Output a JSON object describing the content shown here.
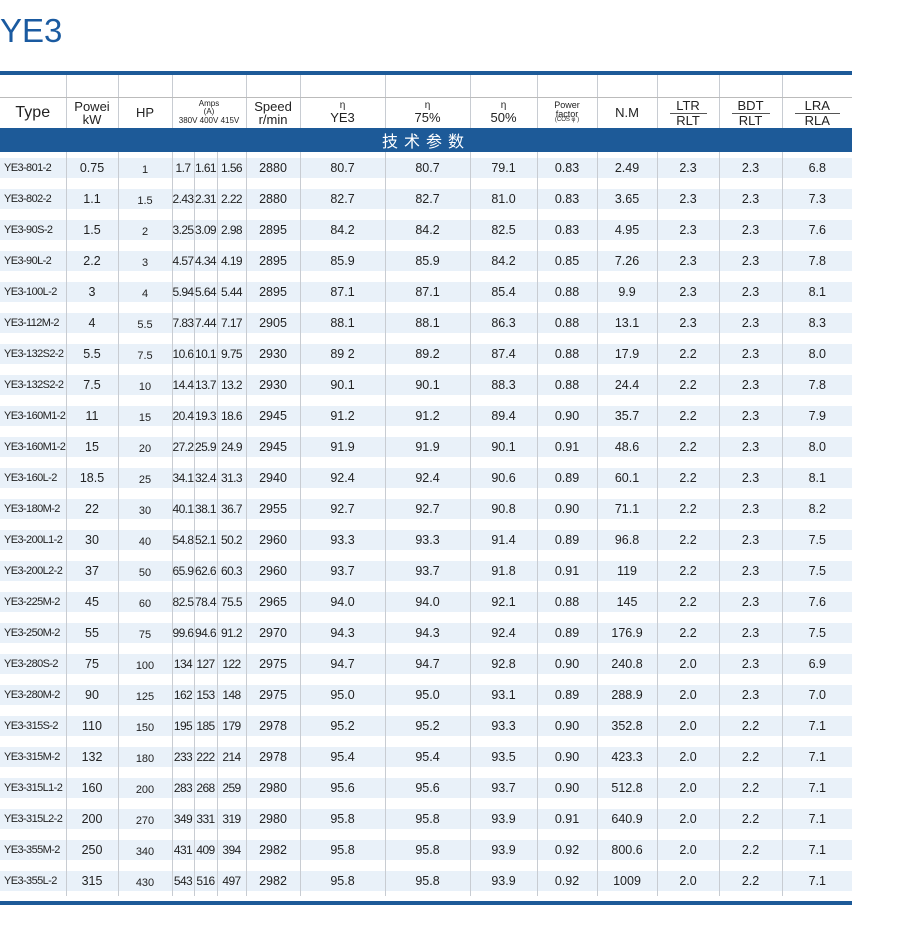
{
  "title": "YE3",
  "headers": {
    "type": "Type",
    "power": [
      "Powei",
      "kW"
    ],
    "hp": "HP",
    "amps": [
      "Amps",
      "(A)",
      "380V 400V 415V"
    ],
    "speed": [
      "Speed",
      "r/min"
    ],
    "eta_ye3": [
      "η",
      "YE3"
    ],
    "eta_75": [
      "η",
      "75%"
    ],
    "eta_50": [
      "η",
      "50%"
    ],
    "pf": [
      "Power",
      "factor",
      "(COS φ )"
    ],
    "nm": "N.M",
    "ltr": [
      "LTR",
      "RLT"
    ],
    "bdt": [
      "BDT",
      "RLT"
    ],
    "lra": [
      "LRA",
      "RLA"
    ]
  },
  "band_label": "技术参数",
  "rows": [
    [
      "YE3-801-2",
      "0.75",
      "1",
      "1.7",
      "1.61",
      "1.56",
      "2880",
      "80.7",
      "80.7",
      "79.1",
      "0.83",
      "2.49",
      "2.3",
      "2.3",
      "6.8"
    ],
    [
      "YE3-802-2",
      "1.1",
      "1.5",
      "2.43",
      "2.31",
      "2.22",
      "2880",
      "82.7",
      "82.7",
      "81.0",
      "0.83",
      "3.65",
      "2.3",
      "2.3",
      "7.3"
    ],
    [
      "YE3-90S-2",
      "1.5",
      "2",
      "3.25",
      "3.09",
      "2.98",
      "2895",
      "84.2",
      "84.2",
      "82.5",
      "0.83",
      "4.95",
      "2.3",
      "2.3",
      "7.6"
    ],
    [
      "YE3-90L-2",
      "2.2",
      "3",
      "4.57",
      "4.34",
      "4.19",
      "2895",
      "85.9",
      "85.9",
      "84.2",
      "0.85",
      "7.26",
      "2.3",
      "2.3",
      "7.8"
    ],
    [
      "YE3-100L-2",
      "3",
      "4",
      "5.94",
      "5.64",
      "5.44",
      "2895",
      "87.1",
      "87.1",
      "85.4",
      "0.88",
      "9.9",
      "2.3",
      "2.3",
      "8.1"
    ],
    [
      "YE3-112M-2",
      "4",
      "5.5",
      "7.83",
      "7.44",
      "7.17",
      "2905",
      "88.1",
      "88.1",
      "86.3",
      "0.88",
      "13.1",
      "2.3",
      "2.3",
      "8.3"
    ],
    [
      "YE3-132S2-2",
      "5.5",
      "7.5",
      "10.6",
      "10.1",
      "9.75",
      "2930",
      "89 2",
      "89.2",
      "87.4",
      "0.88",
      "17.9",
      "2.2",
      "2.3",
      "8.0"
    ],
    [
      "YE3-132S2-2",
      "7.5",
      "10",
      "14.4",
      "13.7",
      "13.2",
      "2930",
      "90.1",
      "90.1",
      "88.3",
      "0.88",
      "24.4",
      "2.2",
      "2.3",
      "7.8"
    ],
    [
      "YE3-160M1-2",
      "11",
      "15",
      "20.4",
      "19.3",
      "18.6",
      "2945",
      "91.2",
      "91.2",
      "89.4",
      "0.90",
      "35.7",
      "2.2",
      "2.3",
      "7.9"
    ],
    [
      "YE3-160M1-2",
      "15",
      "20",
      "27.2",
      "25.9",
      "24.9",
      "2945",
      "91.9",
      "91.9",
      "90.1",
      "0.91",
      "48.6",
      "2.2",
      "2.3",
      "8.0"
    ],
    [
      "YE3-160L-2",
      "18.5",
      "25",
      "34.1",
      "32.4",
      "31.3",
      "2940",
      "92.4",
      "92.4",
      "90.6",
      "0.89",
      "60.1",
      "2.2",
      "2.3",
      "8.1"
    ],
    [
      "YE3-180M-2",
      "22",
      "30",
      "40.1",
      "38.1",
      "36.7",
      "2955",
      "92.7",
      "92.7",
      "90.8",
      "0.90",
      "71.1",
      "2.2",
      "2.3",
      "8.2"
    ],
    [
      "YE3-200L1-2",
      "30",
      "40",
      "54.8",
      "52.1",
      "50.2",
      "2960",
      "93.3",
      "93.3",
      "91.4",
      "0.89",
      "96.8",
      "2.2",
      "2.3",
      "7.5"
    ],
    [
      "YE3-200L2-2",
      "37",
      "50",
      "65.9",
      "62.6",
      "60.3",
      "2960",
      "93.7",
      "93.7",
      "91.8",
      "0.91",
      "119",
      "2.2",
      "2.3",
      "7.5"
    ],
    [
      "YE3-225M-2",
      "45",
      "60",
      "82.5",
      "78.4",
      "75.5",
      "2965",
      "94.0",
      "94.0",
      "92.1",
      "0.88",
      "145",
      "2.2",
      "2.3",
      "7.6"
    ],
    [
      "YE3-250M-2",
      "55",
      "75",
      "99.6",
      "94.6",
      "91.2",
      "2970",
      "94.3",
      "94.3",
      "92.4",
      "0.89",
      "176.9",
      "2.2",
      "2.3",
      "7.5"
    ],
    [
      "YE3-280S-2",
      "75",
      "100",
      "134",
      "127",
      "122",
      "2975",
      "94.7",
      "94.7",
      "92.8",
      "0.90",
      "240.8",
      "2.0",
      "2.3",
      "6.9"
    ],
    [
      "YE3-280M-2",
      "90",
      "125",
      "162",
      "153",
      "148",
      "2975",
      "95.0",
      "95.0",
      "93.1",
      "0.89",
      "288.9",
      "2.0",
      "2.3",
      "7.0"
    ],
    [
      "YE3-315S-2",
      "110",
      "150",
      "195",
      "185",
      "179",
      "2978",
      "95.2",
      "95.2",
      "93.3",
      "0.90",
      "352.8",
      "2.0",
      "2.2",
      "7.1"
    ],
    [
      "YE3-315M-2",
      "132",
      "180",
      "233",
      "222",
      "214",
      "2978",
      "95.4",
      "95.4",
      "93.5",
      "0.90",
      "423.3",
      "2.0",
      "2.2",
      "7.1"
    ],
    [
      "YE3-315L1-2",
      "160",
      "200",
      "283",
      "268",
      "259",
      "2980",
      "95.6",
      "95.6",
      "93.7",
      "0.90",
      "512.8",
      "2.0",
      "2.2",
      "7.1"
    ],
    [
      "YE3-315L2-2",
      "200",
      "270",
      "349",
      "331",
      "319",
      "2980",
      "95.8",
      "95.8",
      "93.9",
      "0.91",
      "640.9",
      "2.0",
      "2.2",
      "7.1"
    ],
    [
      "YE3-355M-2",
      "250",
      "340",
      "431",
      "409",
      "394",
      "2982",
      "95.8",
      "95.8",
      "93.9",
      "0.92",
      "800.6",
      "2.0",
      "2.2",
      "7.1"
    ],
    [
      "YE3-355L-2",
      "315",
      "430",
      "543",
      "516",
      "497",
      "2982",
      "95.8",
      "95.8",
      "93.9",
      "0.92",
      "1009",
      "2.0",
      "2.2",
      "7.1"
    ]
  ]
}
